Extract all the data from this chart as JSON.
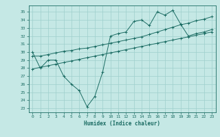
{
  "background_color": "#c5e8e5",
  "grid_color": "#9ecfcc",
  "line_color": "#1a6b62",
  "xlabel": "Humidex (Indice chaleur)",
  "xlim": [
    -0.5,
    23.5
  ],
  "ylim": [
    22.5,
    35.8
  ],
  "yticks": [
    23,
    24,
    25,
    26,
    27,
    28,
    29,
    30,
    31,
    32,
    33,
    34,
    35
  ],
  "xticks": [
    0,
    1,
    2,
    3,
    4,
    5,
    6,
    7,
    8,
    9,
    10,
    11,
    12,
    13,
    14,
    15,
    16,
    17,
    18,
    19,
    20,
    21,
    22,
    23
  ],
  "line1_x": [
    0,
    1,
    2,
    3,
    4,
    5,
    6,
    7,
    8,
    9,
    10,
    11,
    12,
    13,
    14,
    15,
    16,
    17,
    18,
    19,
    20,
    21,
    22,
    23
  ],
  "line1_y": [
    30,
    28,
    29.0,
    29.0,
    27.0,
    26.0,
    25.2,
    23.2,
    24.5,
    27.5,
    32.0,
    32.3,
    32.5,
    33.8,
    34.0,
    33.3,
    35.0,
    34.6,
    35.2,
    33.5,
    32.0,
    32.3,
    32.5,
    32.8
  ],
  "line2_x": [
    0,
    1,
    2,
    3,
    4,
    5,
    6,
    7,
    8,
    9,
    10,
    11,
    12,
    13,
    14,
    15,
    16,
    17,
    18,
    19,
    20,
    21,
    22,
    23
  ],
  "line2_y": [
    29.5,
    29.5,
    29.7,
    29.9,
    30.1,
    30.2,
    30.4,
    30.5,
    30.7,
    30.9,
    31.1,
    31.3,
    31.5,
    31.7,
    31.9,
    32.2,
    32.5,
    32.8,
    33.1,
    33.4,
    33.6,
    33.9,
    34.1,
    34.4
  ],
  "line3_x": [
    0,
    1,
    2,
    3,
    4,
    5,
    6,
    7,
    8,
    9,
    10,
    11,
    12,
    13,
    14,
    15,
    16,
    17,
    18,
    19,
    20,
    21,
    22,
    23
  ],
  "line3_y": [
    27.9,
    28.1,
    28.3,
    28.5,
    28.7,
    28.9,
    29.1,
    29.3,
    29.5,
    29.7,
    29.9,
    30.1,
    30.3,
    30.5,
    30.7,
    30.9,
    31.1,
    31.3,
    31.5,
    31.7,
    31.9,
    32.1,
    32.3,
    32.5
  ]
}
